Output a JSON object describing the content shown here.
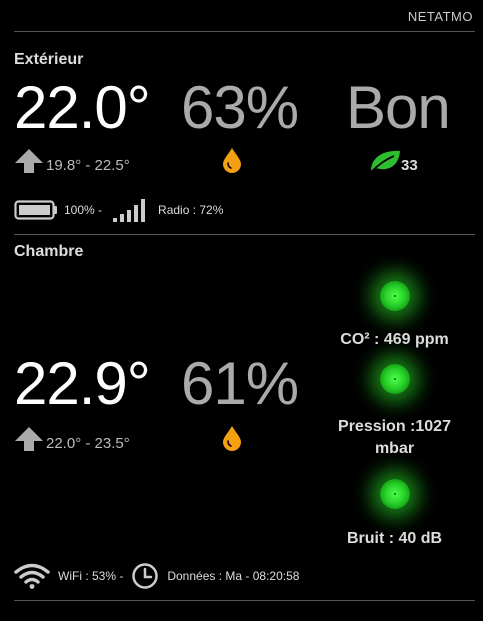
{
  "header": {
    "title": "NETATMO"
  },
  "exterior": {
    "title": "Extérieur",
    "temperature": "22.0°",
    "humidity": "63%",
    "quality": "Bon",
    "range": "19.8° - 22.5°",
    "air_index": "33",
    "battery": "100% -",
    "radio": "Radio : 72%"
  },
  "chambre": {
    "title": "Chambre",
    "temperature": "22.9°",
    "humidity": "61%",
    "range": "22.0° - 23.5°",
    "co2": "CO² : 469 ppm",
    "pressure_line1": "Pression :1027",
    "pressure_line2": "mbar",
    "noise": "Bruit : 40 dB",
    "wifi": "WiFi : 53% -",
    "data": "Données : Ma - 08:20:58"
  },
  "colors": {
    "background": "#000000",
    "drop": "#f5a012",
    "leaf": "#2ebd2e",
    "indicator": "#3ee83e"
  },
  "icons": {
    "arrow": "up-arrow-icon",
    "drop": "water-drop-icon",
    "leaf": "leaf-icon",
    "battery": "battery-icon",
    "signal": "signal-icon",
    "wifi": "wifi-icon",
    "clock": "clock-icon"
  }
}
